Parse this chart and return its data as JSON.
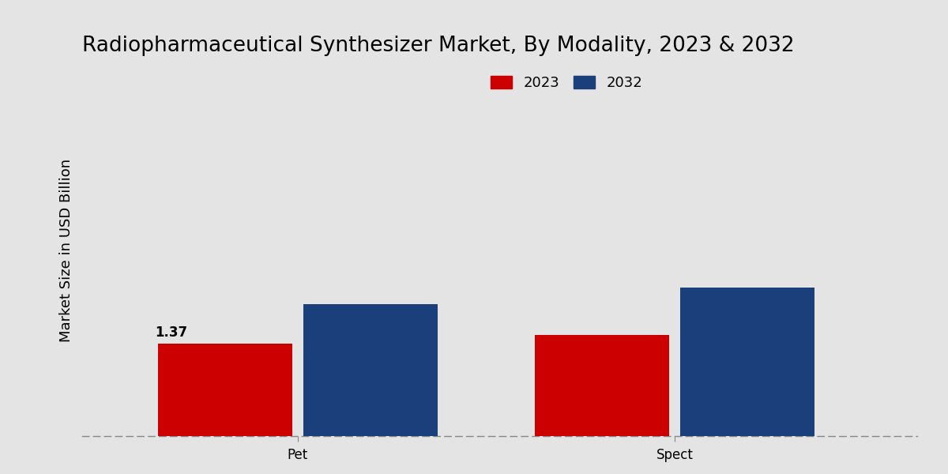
{
  "title": "Radiopharmaceutical Synthesizer Market, By Modality, 2023 & 2032",
  "ylabel": "Market Size in USD Billion",
  "categories": [
    "Pet",
    "Spect"
  ],
  "values_2023": [
    1.37,
    1.5
  ],
  "values_2032": [
    1.95,
    2.2
  ],
  "color_2023": "#cc0000",
  "color_2032": "#1a3f7a",
  "annotation_pet_2023": "1.37",
  "legend_2023": "2023",
  "legend_2032": "2032",
  "background_color_top": "#d8d8d8",
  "background_color_bottom": "#e8e8e8",
  "ylim": [
    0,
    5.5
  ],
  "bar_width": 0.25,
  "group_positions": [
    0.3,
    1.0
  ],
  "title_fontsize": 19,
  "axis_label_fontsize": 13,
  "tick_fontsize": 12,
  "legend_fontsize": 13,
  "annotation_fontsize": 12
}
